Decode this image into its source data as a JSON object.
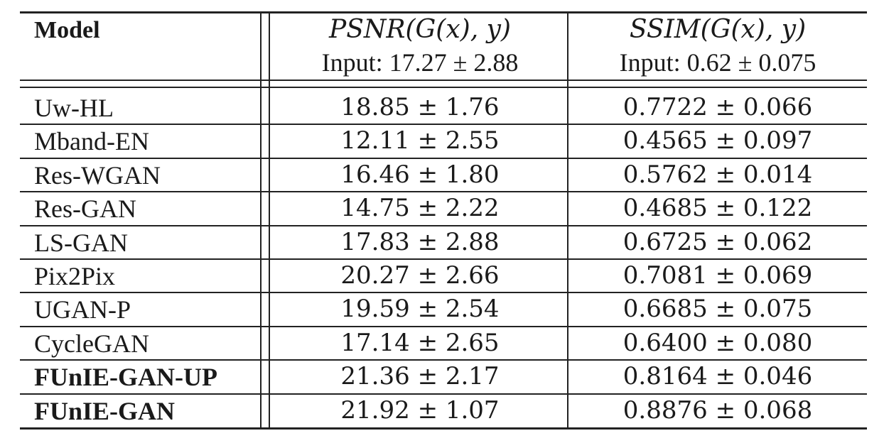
{
  "table": {
    "header": {
      "model_label": "Model",
      "psnr_title": "PSNR(G(x), y)",
      "psnr_input": "Input: 17.27 ± 2.88",
      "ssim_title": "SSIM(G(x), y)",
      "ssim_input": "Input: 0.62 ± 0.075"
    },
    "rows": [
      {
        "model": "Uw-HL",
        "psnr": "18.85 ± 1.76",
        "ssim": "0.7722 ± 0.066",
        "bold": false
      },
      {
        "model": "Mband-EN",
        "psnr": "12.11 ± 2.55",
        "ssim": "0.4565 ± 0.097",
        "bold": false
      },
      {
        "model": "Res-WGAN",
        "psnr": "16.46 ± 1.80",
        "ssim": "0.5762 ± 0.014",
        "bold": false
      },
      {
        "model": "Res-GAN",
        "psnr": "14.75 ± 2.22",
        "ssim": "0.4685 ± 0.122",
        "bold": false
      },
      {
        "model": "LS-GAN",
        "psnr": "17.83 ± 2.88",
        "ssim": "0.6725 ± 0.062",
        "bold": false
      },
      {
        "model": "Pix2Pix",
        "psnr": "20.27 ± 2.66",
        "ssim": "0.7081 ± 0.069",
        "bold": false
      },
      {
        "model": "UGAN-P",
        "psnr": "19.59 ± 2.54",
        "ssim": "0.6685 ± 0.075",
        "bold": false
      },
      {
        "model": "CycleGAN",
        "psnr": "17.14 ± 2.65",
        "ssim": "0.6400 ± 0.080",
        "bold": false
      },
      {
        "model": "FUnIE-GAN-UP",
        "psnr": "21.36 ± 2.17",
        "ssim": "0.8164 ± 0.046",
        "bold": true
      },
      {
        "model": "FUnIE-GAN",
        "psnr": "21.92 ± 1.07",
        "ssim": "0.8876 ± 0.068",
        "bold": true
      }
    ]
  }
}
